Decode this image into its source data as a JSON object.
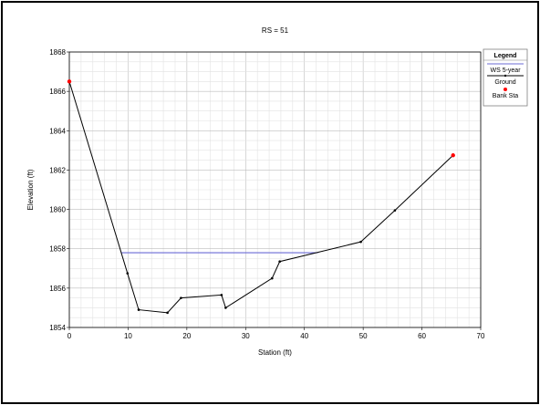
{
  "chart_data": {
    "type": "line",
    "title": "RS = 51",
    "xlabel": "Station (ft)",
    "ylabel": "Elevation (ft)",
    "xlim": [
      0,
      70
    ],
    "ylim": [
      1854,
      1868
    ],
    "x_ticks": [
      "0",
      "10",
      "20",
      "30",
      "40",
      "50",
      "60",
      "70"
    ],
    "y_ticks": [
      "1854",
      "1856",
      "1858",
      "1860",
      "1862",
      "1864",
      "1866",
      "1868"
    ],
    "grid": true,
    "legend": {
      "title": "Legend",
      "placement": "top-right",
      "entries": [
        "WS 5-year",
        "Ground",
        "Bank Sta"
      ]
    },
    "series": [
      {
        "name": "WS 5-year",
        "color": "#6b6bd6",
        "x": [
          8.8,
          42.3
        ],
        "y": [
          1857.8,
          1857.8
        ]
      },
      {
        "name": "Ground",
        "color": "#000000",
        "x": [
          0,
          9.9,
          11.8,
          16.7,
          19.0,
          25.9,
          26.6,
          34.5,
          35.8,
          49.6,
          55.4,
          65.3
        ],
        "y": [
          1866.5,
          1856.75,
          1854.9,
          1854.75,
          1855.5,
          1855.65,
          1855.0,
          1856.5,
          1857.35,
          1858.35,
          1859.95,
          1862.75
        ]
      },
      {
        "name": "Bank Sta",
        "color": "#ff0000",
        "x": [
          0,
          65.3
        ],
        "y": [
          1866.5,
          1862.75
        ]
      }
    ]
  }
}
